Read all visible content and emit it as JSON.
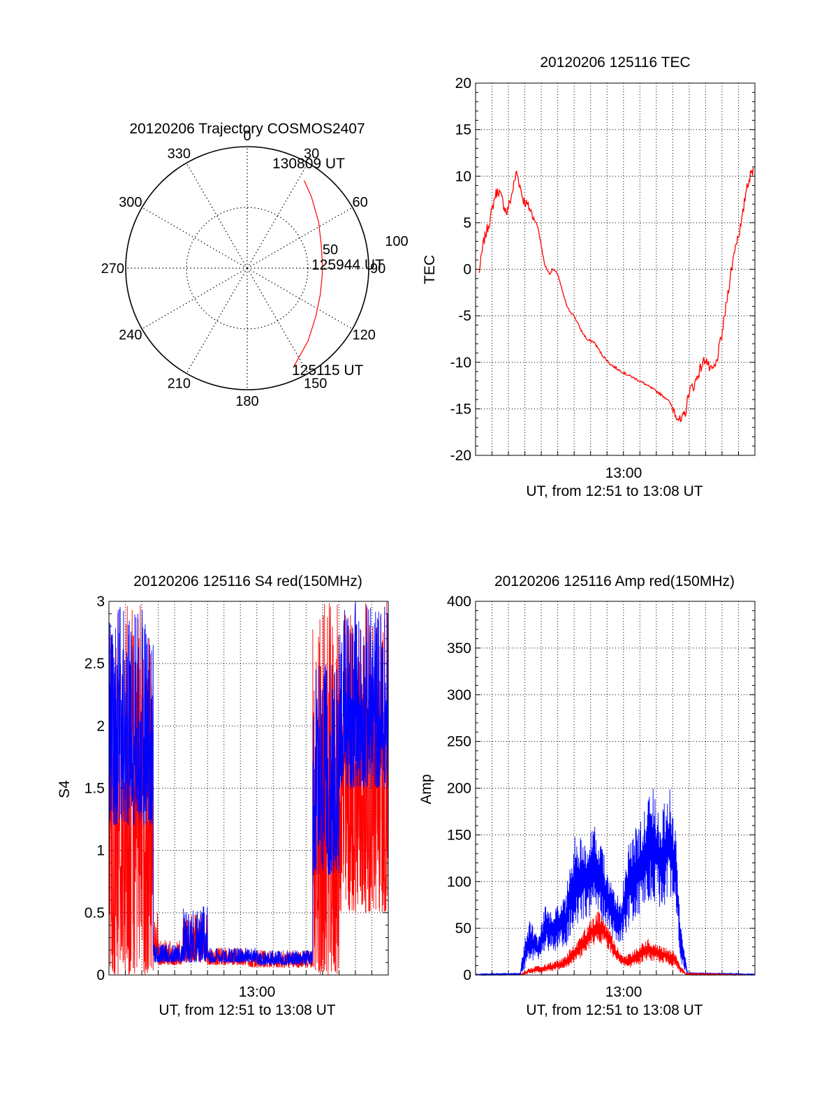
{
  "colors": {
    "red": "#ff0000",
    "blue": "#0000ff",
    "axis": "#000000",
    "grid": "#000000"
  },
  "chart_data": [
    {
      "id": "trajectory",
      "type": "polar",
      "title": "20120206 Trajectory COSMOS2407",
      "angle_ticks": [
        "0",
        "30",
        "60",
        "90",
        "120",
        "150",
        "180",
        "210",
        "240",
        "270",
        "300",
        "330"
      ],
      "radial_ticks": [
        "50",
        "100"
      ],
      "rlim": [
        0,
        100
      ],
      "grid": true,
      "annotations": {
        "start": "125115 UT",
        "middle": "125944 UT",
        "end": "130809 UT"
      },
      "series": [
        {
          "color": "#ff0000",
          "points": [
            [
              155,
              90
            ],
            [
              140,
              78
            ],
            [
              125,
              69
            ],
            [
              110,
              64
            ],
            [
              95,
              62
            ],
            [
              85,
              62
            ],
            [
              72,
              64
            ],
            [
              57,
              70
            ],
            [
              42,
              79
            ],
            [
              33,
              86
            ]
          ]
        }
      ]
    },
    {
      "id": "tec",
      "type": "line",
      "title": "20120206 125116 TEC",
      "xlabel": "UT, from 12:51 to 13:08 UT",
      "ylabel": "TEC",
      "x_tick_label": "13:00",
      "xlim": [
        0,
        17
      ],
      "ylim": [
        -20,
        20
      ],
      "y_ticks": [
        -20,
        -15,
        -10,
        -5,
        0,
        5,
        10,
        15,
        20
      ],
      "grid": true,
      "series": [
        {
          "color": "#ff0000",
          "x": [
            0.2,
            0.5,
            0.9,
            1.2,
            1.4,
            1.7,
            1.9,
            2.2,
            2.5,
            2.7,
            2.9,
            3.3,
            3.8,
            4.2,
            4.5,
            4.7,
            5.0,
            5.3,
            5.6,
            6.0,
            6.4,
            6.8,
            7.2,
            7.7,
            8.2,
            8.7,
            9.2,
            10.0,
            11.0,
            11.7,
            12.2,
            12.5,
            12.8,
            13.0,
            13.3,
            13.6,
            14.0,
            14.3,
            14.6,
            15.0,
            15.4,
            15.8,
            16.2,
            16.5,
            16.9
          ],
          "y": [
            -0.5,
            3.0,
            5.5,
            8.0,
            8.5,
            7.0,
            6.0,
            8.0,
            10.5,
            9.0,
            7.5,
            6.5,
            4.5,
            0.5,
            -0.5,
            0.0,
            -0.5,
            -2.5,
            -4.2,
            -5.0,
            -6.5,
            -7.6,
            -7.8,
            -9.2,
            -10.2,
            -10.8,
            -11.3,
            -12.0,
            -13.1,
            -14.0,
            -15.5,
            -16.5,
            -15.2,
            -13.0,
            -12.5,
            -11.0,
            -9.5,
            -11.0,
            -10.5,
            -7.0,
            -2.0,
            2.5,
            5.0,
            9.0,
            10.8
          ]
        }
      ]
    },
    {
      "id": "s4",
      "type": "line",
      "title": "20120206 125116 S4 red(150MHz)",
      "xlabel": "UT, from 12:51 to 13:08 UT",
      "ylabel": "S4",
      "x_tick_label": "13:00",
      "xlim": [
        0,
        17
      ],
      "ylim": [
        0,
        3
      ],
      "y_ticks": [
        0,
        0.5,
        1,
        1.5,
        2,
        2.5,
        3
      ],
      "y_tick_labels": [
        "0",
        "0.5",
        "1",
        "1.5",
        "2",
        "2.5",
        "3"
      ],
      "grid": true,
      "series": [
        {
          "color": "#ff0000",
          "segments": [
            {
              "x0": 0,
              "x1": 2.7,
              "lo": 0.0,
              "hi": 3.0
            },
            {
              "x0": 2.7,
              "x1": 3.0,
              "lo": 0.15,
              "hi": 0.5
            },
            {
              "x0": 3.0,
              "x1": 4.5,
              "lo": 0.08,
              "hi": 0.28
            },
            {
              "x0": 4.5,
              "x1": 6.0,
              "lo": 0.1,
              "hi": 0.5
            },
            {
              "x0": 6.0,
              "x1": 8.5,
              "lo": 0.08,
              "hi": 0.22
            },
            {
              "x0": 8.5,
              "x1": 12.4,
              "lo": 0.06,
              "hi": 0.2
            },
            {
              "x0": 12.4,
              "x1": 14.0,
              "lo": 0.0,
              "hi": 3.0
            },
            {
              "x0": 14.0,
              "x1": 17.0,
              "lo": 0.5,
              "hi": 3.0
            }
          ]
        },
        {
          "color": "#0000ff",
          "segments": [
            {
              "x0": 0,
              "x1": 2.7,
              "lo": 1.2,
              "hi": 3.0
            },
            {
              "x0": 2.7,
              "x1": 4.5,
              "lo": 0.1,
              "hi": 0.25
            },
            {
              "x0": 4.5,
              "x1": 6.0,
              "lo": 0.1,
              "hi": 0.55
            },
            {
              "x0": 6.0,
              "x1": 9.0,
              "lo": 0.1,
              "hi": 0.22
            },
            {
              "x0": 9.0,
              "x1": 12.4,
              "lo": 0.08,
              "hi": 0.2
            },
            {
              "x0": 12.4,
              "x1": 14.0,
              "lo": 0.8,
              "hi": 2.5
            },
            {
              "x0": 14.0,
              "x1": 17.0,
              "lo": 1.5,
              "hi": 3.0
            }
          ]
        }
      ]
    },
    {
      "id": "amp",
      "type": "line",
      "title": "20120206 125116 Amp red(150MHz)",
      "xlabel": "UT, from 12:51 to 13:08 UT",
      "ylabel": "Amp",
      "x_tick_label": "13:00",
      "xlim": [
        0,
        17
      ],
      "ylim": [
        0,
        400
      ],
      "y_ticks": [
        0,
        50,
        100,
        150,
        200,
        250,
        300,
        350,
        400
      ],
      "grid": true,
      "series": [
        {
          "color": "#0000ff",
          "envelope": {
            "x": [
              0,
              2.7,
              3.0,
              3.3,
              3.8,
              4.3,
              4.8,
              5.5,
              6.0,
              6.8,
              7.3,
              7.8,
              8.3,
              8.8,
              9.3,
              9.8,
              10.3,
              10.8,
              11.3,
              11.8,
              12.2,
              12.5,
              12.9,
              17.0
            ],
            "hi": [
              1,
              2,
              40,
              60,
              40,
              80,
              70,
              90,
              150,
              150,
              160,
              130,
              100,
              80,
              140,
              160,
              180,
              200,
              170,
              210,
              150,
              50,
              3,
              1
            ],
            "lo": [
              0,
              0,
              5,
              15,
              15,
              25,
              25,
              30,
              50,
              60,
              70,
              50,
              40,
              30,
              50,
              60,
              70,
              80,
              70,
              80,
              60,
              10,
              0,
              0
            ]
          }
        },
        {
          "color": "#ff0000",
          "envelope": {
            "x": [
              0,
              2.7,
              3.3,
              4.3,
              5.3,
              6.3,
              7.0,
              7.5,
              8.0,
              8.5,
              9.0,
              9.5,
              10.5,
              11.5,
              12.1,
              12.5,
              12.8,
              17.0
            ],
            "hi": [
              0,
              0,
              8,
              12,
              18,
              40,
              60,
              70,
              55,
              35,
              20,
              25,
              40,
              30,
              25,
              10,
              2,
              0
            ],
            "lo": [
              0,
              0,
              1,
              3,
              5,
              15,
              30,
              35,
              30,
              15,
              8,
              8,
              15,
              12,
              8,
              2,
              0,
              0
            ]
          }
        }
      ]
    }
  ]
}
